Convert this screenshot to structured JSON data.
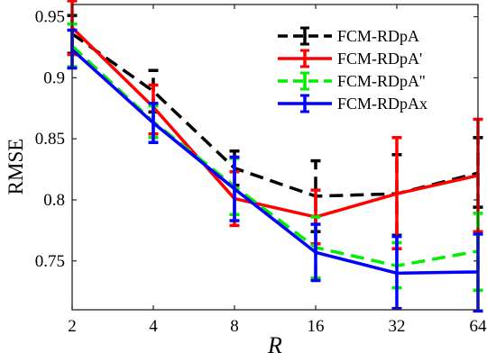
{
  "chart_data": {
    "type": "line",
    "xlabel": "R",
    "ylabel": "RMSE",
    "x_ticks": [
      "2",
      "4",
      "8",
      "16",
      "32",
      "64"
    ],
    "x": [
      2,
      4,
      8,
      16,
      32,
      64
    ],
    "x_scale": "log2",
    "ylim": [
      0.71,
      0.96
    ],
    "y_ticks": [
      0.75,
      0.8,
      0.85,
      0.9,
      0.95
    ],
    "y_tick_labels": [
      "0.75",
      "0.8",
      "0.85",
      "0.9",
      "0.95"
    ],
    "grid": false,
    "legend_position": "top-right",
    "series": [
      {
        "name": "FCM-RDpA",
        "color": "#000000",
        "dash": "dashed",
        "values": [
          0.936,
          0.889,
          0.826,
          0.803,
          0.805,
          0.822
        ],
        "err_low": [
          0.92,
          0.872,
          0.812,
          0.774,
          0.771,
          0.794
        ],
        "err_high": [
          0.951,
          0.906,
          0.84,
          0.832,
          0.837,
          0.851
        ]
      },
      {
        "name": "FCM-RDpA'",
        "color": "#ff0000",
        "dash": "solid",
        "values": [
          0.941,
          0.876,
          0.801,
          0.786,
          0.805,
          0.82
        ],
        "err_low": [
          0.919,
          0.854,
          0.779,
          0.764,
          0.76,
          0.774
        ],
        "err_high": [
          0.963,
          0.894,
          0.823,
          0.808,
          0.851,
          0.866
        ]
      },
      {
        "name": "FCM-RDpA''",
        "color": "#00ee00",
        "dash": "dashed",
        "values": [
          0.926,
          0.864,
          0.811,
          0.761,
          0.746,
          0.758
        ],
        "err_low": [
          0.909,
          0.851,
          0.788,
          0.736,
          0.728,
          0.726
        ],
        "err_high": [
          0.944,
          0.877,
          0.834,
          0.786,
          0.765,
          0.789
        ]
      },
      {
        "name": "FCM-RDpAx",
        "color": "#0000ff",
        "dash": "solid",
        "values": [
          0.923,
          0.863,
          0.809,
          0.757,
          0.74,
          0.741
        ],
        "err_low": [
          0.908,
          0.847,
          0.783,
          0.734,
          0.711,
          0.709
        ],
        "err_high": [
          0.939,
          0.879,
          0.835,
          0.78,
          0.77,
          0.772
        ]
      }
    ]
  }
}
